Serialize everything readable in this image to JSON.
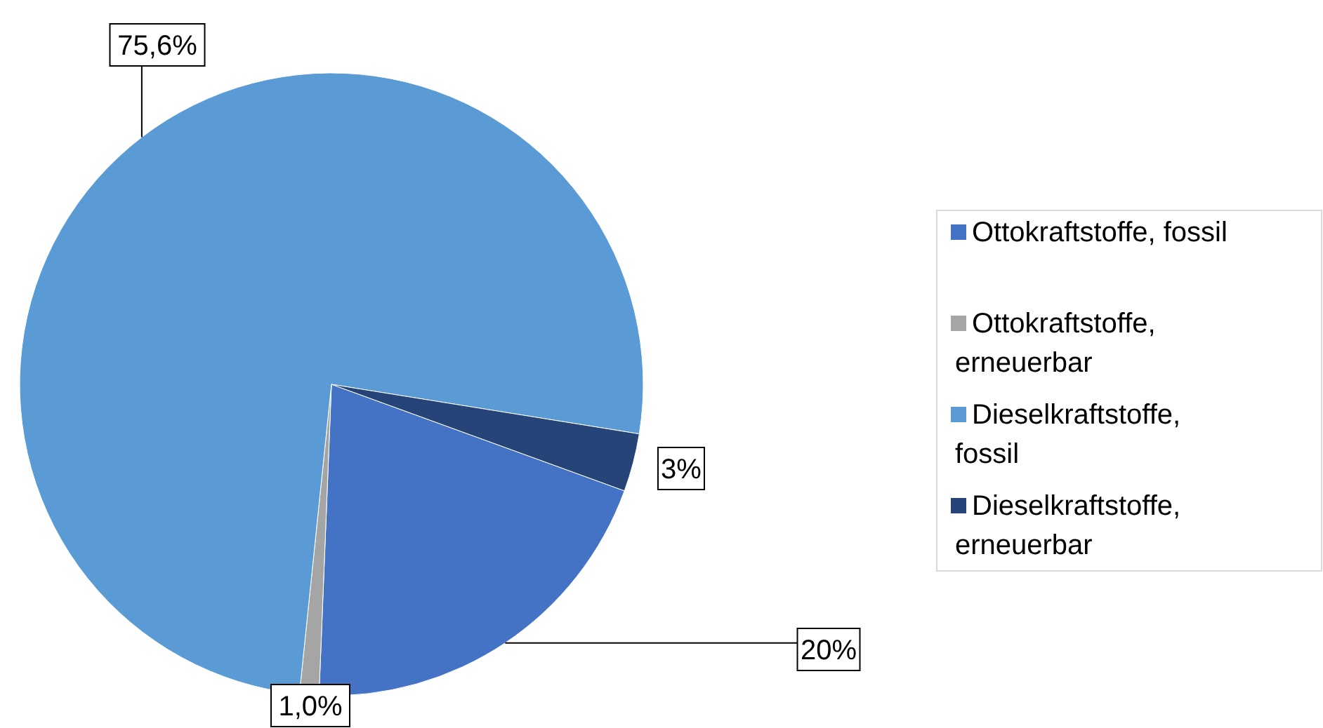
{
  "chart_data": {
    "type": "pie",
    "categories": [
      "Ottokraftstoffe, fossil",
      "Ottokraftstoffe, erneuerbar",
      "Dieselkraftstoffe, fossil",
      "Dieselkraftstoffe, erneuerbar"
    ],
    "values": [
      20,
      1.0,
      75.6,
      3
    ],
    "value_labels": [
      "20%",
      "1,0%",
      "75,6%",
      "3%"
    ],
    "colors": [
      "#4472c4",
      "#a5a5a5",
      "#5b9bd5",
      "#264478"
    ],
    "legend": "right"
  }
}
